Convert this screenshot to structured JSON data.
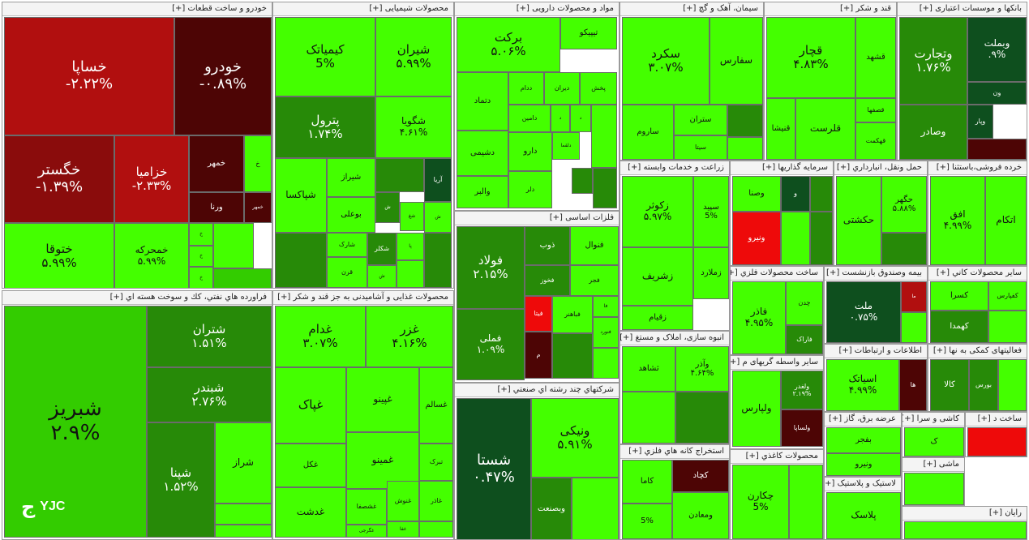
{
  "logo": {
    "text": "YJC"
  },
  "colors": {
    "bg-g": "#44ff00",
    "bg-m": "#33cc00",
    "bg-d": "#278a08",
    "bg-v": "#0e4f1e",
    "bg-r": "#b10f0f",
    "bg-r2": "#8a0c0c",
    "bg-k": "#4d0505",
    "bg-br": "#ee0a0a"
  },
  "sectors": [
    {
      "id": "auto",
      "title": "خودرو و ساخت قطعات [+]",
      "tiles": [
        {
          "name": "خساپا",
          "pct": "-۲.۲۲%",
          "c": "bg-r"
        },
        {
          "name": "خودرو",
          "pct": "-۰.۸۹%",
          "c": "bg-k"
        },
        {
          "name": "خگستر",
          "pct": "-۱.۳۹%",
          "c": "bg-r2"
        },
        {
          "name": "خزامیا",
          "pct": "-۲.۳۳%",
          "c": "bg-r"
        },
        {
          "name": "ختوقا",
          "pct": "۵.۹۹%",
          "c": "bg-g"
        },
        {
          "name": "خمحرکه",
          "pct": "۵.۹۹%",
          "c": "bg-g"
        },
        {
          "name": "خمهر",
          "pct": "",
          "c": "bg-k"
        },
        {
          "name": "ورنا",
          "pct": "",
          "c": "bg-k"
        },
        {
          "name": "خمهر",
          "pct": "",
          "c": "bg-k"
        },
        {
          "name": "خ",
          "pct": "",
          "c": "bg-g"
        },
        {
          "name": "خ",
          "pct": "",
          "c": "bg-g"
        },
        {
          "name": "خ",
          "pct": "",
          "c": "bg-g"
        },
        {
          "name": "خ",
          "pct": "",
          "c": "bg-g"
        },
        {
          "name": "",
          "pct": "",
          "c": "bg-g"
        },
        {
          "name": "",
          "pct": "",
          "c": "bg-m"
        }
      ]
    },
    {
      "id": "chem",
      "title": "محصولات شیمیایی [+]",
      "tiles": [
        {
          "name": "کیمیاتک",
          "pct": "5%",
          "c": "bg-g"
        },
        {
          "name": "شیران",
          "pct": "۵.۹۹%",
          "c": "bg-g"
        },
        {
          "name": "پترول",
          "pct": "۱.۷۴%",
          "c": "bg-d"
        },
        {
          "name": "شگویا",
          "pct": "۴.۶۱%",
          "c": "bg-g"
        },
        {
          "name": "شپاکسا",
          "pct": "",
          "c": "bg-g"
        },
        {
          "name": "شیراز",
          "pct": "",
          "c": "bg-g"
        },
        {
          "name": "",
          "pct": "",
          "c": "bg-d"
        },
        {
          "name": "آریا",
          "pct": "",
          "c": "bg-v"
        },
        {
          "name": "بوعلی",
          "pct": "",
          "c": "bg-g"
        },
        {
          "name": "ش",
          "pct": "",
          "c": "bg-d"
        },
        {
          "name": "شغ",
          "pct": "",
          "c": "bg-g"
        },
        {
          "name": "ش",
          "pct": "",
          "c": "bg-g"
        },
        {
          "name": "",
          "pct": "",
          "c": "bg-d"
        },
        {
          "name": "شارک",
          "pct": "",
          "c": "bg-g"
        },
        {
          "name": "شکلر",
          "pct": "",
          "c": "bg-d"
        },
        {
          "name": "پا",
          "pct": "",
          "c": "bg-g"
        },
        {
          "name": "قرن",
          "pct": "",
          "c": "bg-g"
        },
        {
          "name": "ش",
          "pct": "",
          "c": "bg-g"
        },
        {
          "name": "",
          "pct": "",
          "c": "bg-g"
        },
        {
          "name": "",
          "pct": "",
          "c": "bg-d"
        }
      ]
    },
    {
      "id": "pharma",
      "title": "مواد و محصولات دارویی [+]",
      "tiles": [
        {
          "name": "برکت",
          "pct": "۵.۰۶%",
          "c": "bg-g"
        },
        {
          "name": "تیپیکو",
          "pct": "",
          "c": "bg-g"
        },
        {
          "name": "دتماد",
          "pct": "",
          "c": "bg-g"
        },
        {
          "name": "ددام",
          "pct": "",
          "c": "bg-g"
        },
        {
          "name": "دیران",
          "pct": "",
          "c": "bg-g"
        },
        {
          "name": "پخش",
          "pct": "",
          "c": "bg-g"
        },
        {
          "name": "دامین",
          "pct": "",
          "c": "bg-g"
        },
        {
          "name": "د",
          "pct": "",
          "c": "bg-g"
        },
        {
          "name": "د",
          "pct": "",
          "c": "bg-g"
        },
        {
          "name": "دشیمی",
          "pct": "",
          "c": "bg-g"
        },
        {
          "name": "دارو",
          "pct": "",
          "c": "bg-g"
        },
        {
          "name": "دلقما",
          "pct": "",
          "c": "bg-g"
        },
        {
          "name": "والبر",
          "pct": "",
          "c": "bg-g"
        },
        {
          "name": "دلر",
          "pct": "",
          "c": "bg-g"
        },
        {
          "name": "",
          "pct": "",
          "c": "bg-d"
        },
        {
          "name": "",
          "pct": "",
          "c": "bg-d"
        },
        {
          "name": "",
          "pct": "",
          "c": "bg-g"
        }
      ]
    },
    {
      "id": "cement",
      "title": "سیمان، آهک و گچ [+]",
      "tiles": [
        {
          "name": "سکرد",
          "pct": "۳.۰۷%",
          "c": "bg-g"
        },
        {
          "name": "سفارس",
          "pct": "",
          "c": "bg-g"
        },
        {
          "name": "ساروم",
          "pct": "",
          "c": "bg-g"
        },
        {
          "name": "ستران",
          "pct": "",
          "c": "bg-g"
        },
        {
          "name": "سیتا",
          "pct": "",
          "c": "bg-g"
        },
        {
          "name": "",
          "pct": "",
          "c": "bg-d"
        },
        {
          "name": "",
          "pct": "",
          "c": "bg-g"
        }
      ]
    },
    {
      "id": "sugar",
      "title": "قند و شکر [+]",
      "tiles": [
        {
          "name": "قچار",
          "pct": "۴.۸۳%",
          "c": "bg-g"
        },
        {
          "name": "قشهد",
          "pct": "",
          "c": "bg-g"
        },
        {
          "name": "قصفها",
          "pct": "",
          "c": "bg-g"
        },
        {
          "name": "قنیشا",
          "pct": "",
          "c": "bg-g"
        },
        {
          "name": "قلرست",
          "pct": "",
          "c": "bg-g"
        },
        {
          "name": "قهکمت",
          "pct": "",
          "c": "bg-g"
        }
      ]
    },
    {
      "id": "banks",
      "title": "بانکها و موسسات اعتباری [+]",
      "tiles": [
        {
          "name": "وتجارت",
          "pct": "۱.۷۶%",
          "c": "bg-d"
        },
        {
          "name": "وبملت",
          "pct": ".۹%",
          "c": "bg-v"
        },
        {
          "name": "ون",
          "pct": "",
          "c": "bg-v"
        },
        {
          "name": "وصادر",
          "pct": "",
          "c": "bg-d"
        },
        {
          "name": "وپار",
          "pct": "",
          "c": "bg-v"
        },
        {
          "name": "",
          "pct": "",
          "c": "bg-k"
        }
      ]
    },
    {
      "id": "oil",
      "title": "فراورده هاي نفتي، كك و سوخت هسته اي [+]",
      "tiles": [
        {
          "name": "شبریز",
          "pct": "۲.۹%",
          "c": "bg-m"
        },
        {
          "name": "شتران",
          "pct": "۱.۵۱%",
          "c": "bg-d"
        },
        {
          "name": "شبندر",
          "pct": "۲.۷۶%",
          "c": "bg-d"
        },
        {
          "name": "شپنا",
          "pct": "۱.۵۲%",
          "c": "bg-d"
        },
        {
          "name": "شراز",
          "pct": "",
          "c": "bg-g"
        },
        {
          "name": "",
          "pct": "",
          "c": "bg-g"
        },
        {
          "name": "",
          "pct": "",
          "c": "bg-g"
        }
      ]
    },
    {
      "id": "food",
      "title": "محصولات غذایی و آشامیدنی به جز قند و شکر [+]",
      "tiles": [
        {
          "name": "غدام",
          "pct": "۳.۰۷%",
          "c": "bg-g"
        },
        {
          "name": "غزر",
          "pct": "۴.۱۶%",
          "c": "bg-g"
        },
        {
          "name": "غپاک",
          "pct": "",
          "c": "bg-g"
        },
        {
          "name": "غپینو",
          "pct": "",
          "c": "bg-g"
        },
        {
          "name": "غسالم",
          "pct": "",
          "c": "bg-g"
        },
        {
          "name": "غکل",
          "pct": "",
          "c": "bg-g"
        },
        {
          "name": "غمینو",
          "pct": "",
          "c": "bg-g"
        },
        {
          "name": "تبرک",
          "pct": "",
          "c": "bg-g"
        },
        {
          "name": "غنوش",
          "pct": "",
          "c": "bg-g"
        },
        {
          "name": "غاذر",
          "pct": "",
          "c": "bg-g"
        },
        {
          "name": "غدشت",
          "pct": "",
          "c": "bg-g"
        },
        {
          "name": "غشصفا",
          "pct": "",
          "c": "bg-g"
        },
        {
          "name": "غفا",
          "pct": "",
          "c": "bg-g"
        },
        {
          "name": "غگرجی",
          "pct": "",
          "c": "bg-g"
        },
        {
          "name": "",
          "pct": "",
          "c": "bg-g"
        }
      ]
    },
    {
      "id": "metals",
      "title": "فلزات اساسی [+]",
      "tiles": [
        {
          "name": "فولاد",
          "pct": "۲.۱۵%",
          "c": "bg-d"
        },
        {
          "name": "فملی",
          "pct": "۱.۰۹%",
          "c": "bg-d"
        },
        {
          "name": "ذوب",
          "pct": "",
          "c": "bg-d"
        },
        {
          "name": "فنوال",
          "pct": "",
          "c": "bg-g"
        },
        {
          "name": "فخوز",
          "pct": "",
          "c": "bg-d"
        },
        {
          "name": "فجر",
          "pct": "",
          "c": "bg-g"
        },
        {
          "name": "فا",
          "pct": "",
          "c": "bg-g"
        },
        {
          "name": "فیتا",
          "pct": "",
          "c": "bg-br"
        },
        {
          "name": "فباهنر",
          "pct": "",
          "c": "bg-g"
        },
        {
          "name": "فنورد",
          "pct": "",
          "c": "bg-g"
        },
        {
          "name": "م",
          "pct": "",
          "c": "bg-k"
        },
        {
          "name": "",
          "pct": "",
          "c": "bg-d"
        },
        {
          "name": "",
          "pct": "",
          "c": "bg-g"
        }
      ]
    },
    {
      "id": "multi",
      "title": "شرکتهاي چند رشته اي صنعتي [+]",
      "tiles": [
        {
          "name": "شستا",
          "pct": "۰.۴۷%",
          "c": "bg-v"
        },
        {
          "name": "ونیکی",
          "pct": "۵.۹۱%",
          "c": "bg-g"
        },
        {
          "name": "وبصنعت",
          "pct": "",
          "c": "bg-d"
        },
        {
          "name": "",
          "pct": "",
          "c": "bg-g"
        }
      ]
    },
    {
      "id": "agri",
      "title": "زراعت و خدمات وابسته [+]",
      "tiles": [
        {
          "name": "زکوثر",
          "pct": "۵.۹۷%",
          "c": "bg-g"
        },
        {
          "name": "سپید",
          "pct": "5%",
          "c": "bg-g"
        },
        {
          "name": "زشریف",
          "pct": "",
          "c": "bg-g"
        },
        {
          "name": "زملارد",
          "pct": "",
          "c": "bg-g"
        },
        {
          "name": "زقیام",
          "pct": "",
          "c": "bg-g"
        }
      ]
    },
    {
      "id": "invest",
      "title": "سرمایه گذاریها [+]",
      "tiles": [
        {
          "name": "وصنا",
          "pct": "",
          "c": "bg-g"
        },
        {
          "name": "و",
          "pct": "",
          "c": "bg-v"
        },
        {
          "name": "",
          "pct": "",
          "c": "bg-d"
        },
        {
          "name": "ونیرو",
          "pct": "",
          "c": "bg-br"
        },
        {
          "name": "",
          "pct": "",
          "c": "bg-g"
        },
        {
          "name": "",
          "pct": "",
          "c": "bg-d"
        }
      ]
    },
    {
      "id": "transport",
      "title": "حمل ونقل، انبارداري [+]",
      "tiles": [
        {
          "name": "حکشتی",
          "pct": "",
          "c": "bg-g"
        },
        {
          "name": "حگهر",
          "pct": "۵.۸۸%",
          "c": "bg-g"
        },
        {
          "name": "",
          "pct": "",
          "c": "bg-d"
        }
      ]
    },
    {
      "id": "retail",
      "title": "خرده فروشی،باستثنا [+]",
      "tiles": [
        {
          "name": "افق",
          "pct": "۴.۹۹%",
          "c": "bg-g"
        },
        {
          "name": "اتکام",
          "pct": "",
          "c": "bg-g"
        }
      ]
    },
    {
      "id": "construction",
      "title": "انبوه سازی، املاک و مستغ [+]",
      "tiles": [
        {
          "name": "ثشاهد",
          "pct": "",
          "c": "bg-g"
        },
        {
          "name": "وآذر",
          "pct": "۴.۶۴%",
          "c": "bg-g"
        },
        {
          "name": "",
          "pct": "",
          "c": "bg-g"
        },
        {
          "name": "",
          "pct": "",
          "c": "bg-d"
        }
      ]
    },
    {
      "id": "metalprod",
      "title": "ساخت محصولات فلزي [+]",
      "tiles": [
        {
          "name": "فاذر",
          "pct": "۴.۹۵%",
          "c": "bg-g"
        },
        {
          "name": "چدن",
          "pct": "",
          "c": "bg-g"
        },
        {
          "name": "فاراک",
          "pct": "",
          "c": "bg-d"
        }
      ]
    },
    {
      "id": "insurance",
      "title": "بیمه وصندوق بازنشست [+]",
      "tiles": [
        {
          "name": "ملت",
          "pct": "۰.۷۵%",
          "c": "bg-v"
        },
        {
          "name": "ما",
          "pct": "",
          "c": "bg-r"
        },
        {
          "name": "",
          "pct": "",
          "c": "bg-g"
        },
        {
          "name": "",
          "pct": "",
          "c": "bg-k"
        }
      ]
    },
    {
      "id": "nonmetal",
      "title": "ساير محصولات كاني [+]",
      "tiles": [
        {
          "name": "کسرا",
          "pct": "",
          "c": "bg-g"
        },
        {
          "name": "کفپارس",
          "pct": "",
          "c": "bg-g"
        },
        {
          "name": "کهمدا",
          "pct": "",
          "c": "bg-d"
        },
        {
          "name": "",
          "pct": "",
          "c": "bg-g"
        }
      ]
    },
    {
      "id": "ict",
      "title": "اطلاعات و ارتباطات [+]",
      "tiles": [
        {
          "name": "اسیاتک",
          "pct": "۴.۹۹%",
          "c": "bg-g"
        },
        {
          "name": "ها",
          "pct": "",
          "c": "bg-k"
        }
      ]
    },
    {
      "id": "financial",
      "title": "فعالیتهای کمکی به نها [+]",
      "tiles": [
        {
          "name": "کالا",
          "pct": "",
          "c": "bg-d"
        },
        {
          "name": "بورس",
          "pct": "",
          "c": "bg-d"
        },
        {
          "name": "",
          "pct": "",
          "c": "bg-g"
        }
      ]
    },
    {
      "id": "intermediary",
      "title": "سایر واسطه گریهای م [+]",
      "tiles": [
        {
          "name": "ولپارس",
          "pct": "",
          "c": "bg-g"
        },
        {
          "name": "ولغدر",
          "pct": "۲.۱۹%",
          "c": "bg-d"
        },
        {
          "name": "ولساپا",
          "pct": "",
          "c": "bg-k"
        }
      ]
    },
    {
      "id": "electric",
      "title": "عرضه برق، گاز [+]",
      "tiles": [
        {
          "name": "بفجر",
          "pct": "",
          "c": "bg-g"
        },
        {
          "name": "ونیرو",
          "pct": "",
          "c": "bg-g"
        }
      ]
    },
    {
      "id": "tiles",
      "title": "کاشی و سرا [+]",
      "tiles": [
        {
          "name": "ک",
          "pct": "",
          "c": "bg-g"
        }
      ]
    },
    {
      "id": "build",
      "title": "ساخت د [+]",
      "tiles": [
        {
          "name": "",
          "pct": "",
          "c": "bg-br"
        }
      ]
    },
    {
      "id": "paper",
      "title": "محصولات کاغذي [+]",
      "tiles": [
        {
          "name": "چکارن",
          "pct": "5%",
          "c": "bg-g"
        },
        {
          "name": "",
          "pct": "",
          "c": "bg-g"
        }
      ]
    },
    {
      "id": "mining",
      "title": "استخراج کانه هاي فلزي [+]",
      "tiles": [
        {
          "name": "کاما",
          "pct": "",
          "c": "bg-g"
        },
        {
          "name": "کچاد",
          "pct": "",
          "c": "bg-k"
        },
        {
          "name": "ومعادن",
          "pct": "",
          "c": "bg-g"
        },
        {
          "name": "",
          "pct": "5%",
          "c": "bg-g"
        }
      ]
    },
    {
      "id": "plastic",
      "title": "لاستیک و پلاستیک [+]",
      "tiles": [
        {
          "name": "پلاسک",
          "pct": "",
          "c": "bg-g"
        }
      ]
    },
    {
      "id": "machinery",
      "title": "ماشی [+]",
      "tiles": [
        {
          "name": "",
          "pct": "",
          "c": "bg-g"
        }
      ]
    },
    {
      "id": "computer",
      "title": "رایان [+]",
      "tiles": [
        {
          "name": "",
          "pct": "",
          "c": "bg-g"
        }
      ]
    }
  ]
}
